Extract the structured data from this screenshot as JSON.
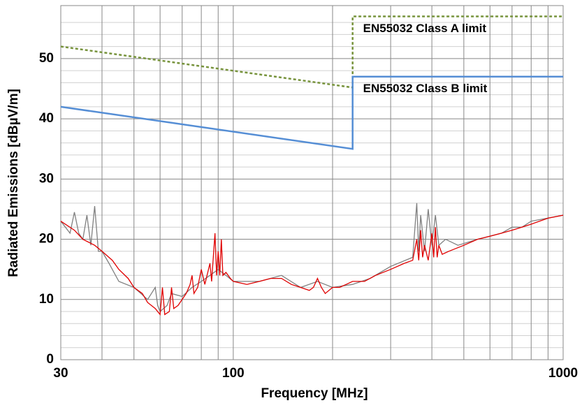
{
  "chart_data": {
    "type": "line",
    "xlabel": "Frequency [MHz]",
    "ylabel": "Radiated Emissions [dBµV/m]",
    "xscale": "log",
    "xlim": [
      30,
      1000
    ],
    "xticks": [
      30,
      100,
      1000
    ],
    "xminor": [
      40,
      50,
      60,
      70,
      80,
      90,
      200,
      300,
      400,
      500,
      600,
      700,
      800,
      900
    ],
    "ylim": [
      0,
      58.8
    ],
    "yticks": [
      0,
      10,
      20,
      30,
      40,
      50
    ],
    "yminor": [
      2,
      4,
      6,
      8,
      12,
      14,
      16,
      18,
      22,
      24,
      26,
      28,
      32,
      34,
      36,
      38,
      42,
      44,
      46,
      48,
      52,
      54,
      56
    ],
    "grid": true,
    "series": [
      {
        "color": "#808080",
        "x": [
          30,
          32,
          33,
          34,
          35,
          36,
          37,
          38,
          39,
          40,
          42,
          45,
          50,
          55,
          58,
          59,
          60,
          63,
          65,
          70,
          75,
          80,
          85,
          90,
          95,
          100,
          120,
          140,
          160,
          180,
          200,
          230,
          260,
          300,
          350,
          360,
          365,
          370,
          380,
          390,
          400,
          410,
          420,
          440,
          480,
          550,
          650,
          700,
          750,
          800,
          1000
        ],
        "values": [
          23,
          21,
          24.5,
          21,
          20,
          24,
          19,
          25.5,
          18,
          18,
          16,
          13,
          12,
          10,
          12,
          9,
          8,
          9,
          11,
          10.5,
          12,
          13,
          14,
          15,
          14,
          13,
          13,
          14,
          12,
          13,
          12,
          12.5,
          13.5,
          15.5,
          17,
          26,
          18,
          24,
          18,
          25,
          19,
          24,
          19,
          20,
          19,
          20,
          21,
          22,
          22,
          23,
          24
        ]
      },
      {
        "color": "#e00000",
        "x": [
          30,
          33,
          35,
          38,
          40,
          43,
          45,
          48,
          50,
          53,
          55,
          58,
          60,
          61,
          62,
          64,
          65,
          66,
          68,
          70,
          72,
          74,
          75,
          76,
          78,
          80,
          82,
          85,
          86,
          88,
          89,
          90,
          91,
          92,
          93,
          95,
          98,
          100,
          110,
          120,
          130,
          140,
          150,
          160,
          170,
          175,
          180,
          185,
          190,
          200,
          210,
          220,
          230,
          250,
          270,
          300,
          330,
          350,
          360,
          365,
          370,
          375,
          380,
          390,
          400,
          405,
          410,
          415,
          420,
          430,
          450,
          500,
          550,
          600,
          650,
          700,
          750,
          800,
          900,
          1000
        ],
        "values": [
          23,
          21.5,
          20,
          19,
          18,
          16.5,
          15,
          13.5,
          12,
          11,
          9.5,
          8.5,
          7.5,
          12,
          7.5,
          8,
          12,
          8.5,
          9,
          10,
          11,
          12.5,
          14,
          11,
          12,
          15,
          12.5,
          16,
          13,
          21,
          14,
          18,
          14,
          20,
          14,
          14.5,
          13.5,
          13,
          12.5,
          13,
          13.5,
          13.5,
          12.5,
          12,
          11.5,
          12,
          13.5,
          12,
          11,
          12,
          12,
          12.5,
          13,
          13,
          14,
          15,
          16,
          16.5,
          20,
          16.5,
          21.5,
          17,
          19,
          16.5,
          21,
          17,
          22,
          17,
          19,
          17.5,
          18,
          19,
          20,
          20.5,
          21,
          21.5,
          22,
          22.5,
          23.5,
          24
        ]
      },
      {
        "name": "EN55032 Class A limit",
        "color": "#77933c",
        "dashed": true,
        "x": [
          30,
          230,
          230,
          1000
        ],
        "values": [
          52,
          45.2,
          57,
          57
        ]
      },
      {
        "name": "EN55032 Class B limit",
        "color": "#558ed5",
        "x": [
          30,
          230,
          230,
          1000
        ],
        "values": [
          42,
          35,
          47,
          47
        ]
      }
    ]
  }
}
